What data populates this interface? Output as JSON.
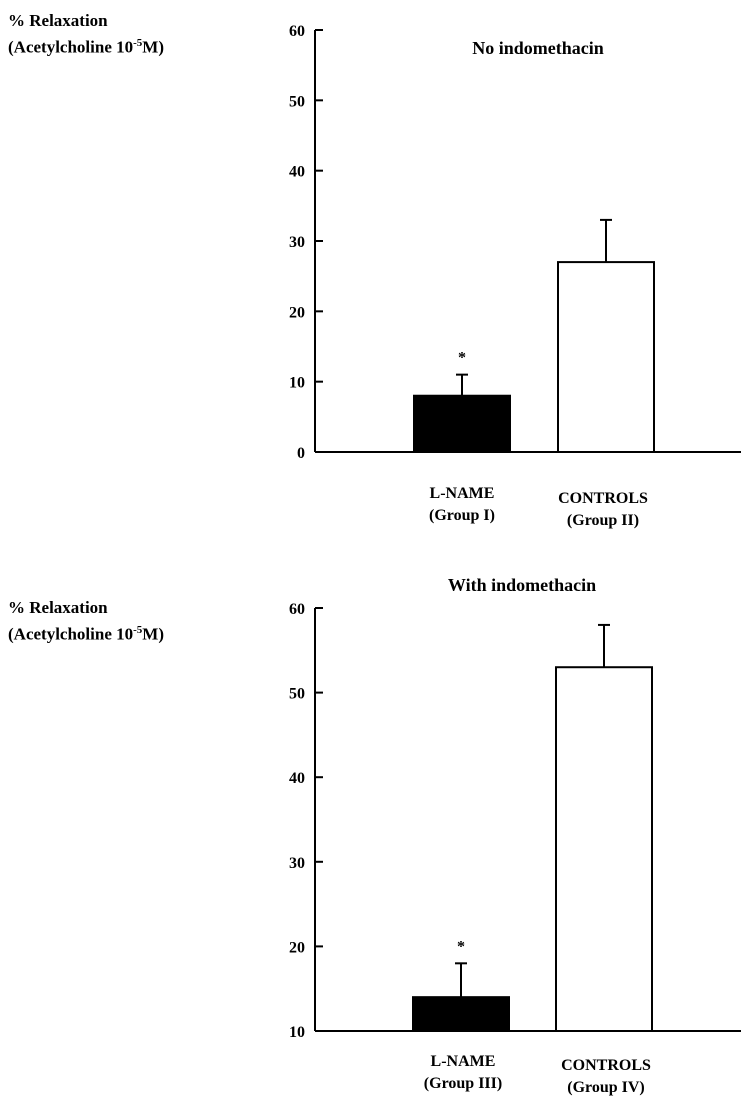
{
  "chart_data": [
    {
      "type": "bar",
      "title": "No indomethacin",
      "ylabel": [
        "% Relaxation",
        "(Acetylcholine 10",
        "-5",
        "M)"
      ],
      "categories": [
        {
          "name": "L-NAME",
          "group": "(Group I)"
        },
        {
          "name": "CONTROLS",
          "group": "(Group II)"
        }
      ],
      "values": [
        8,
        27
      ],
      "errors": [
        3,
        6
      ],
      "fills": [
        "#000000",
        "#ffffff"
      ],
      "significance": [
        "*",
        ""
      ],
      "ylim": [
        0,
        60
      ],
      "yticks": [
        0,
        10,
        20,
        30,
        40,
        50,
        60
      ],
      "grid": false,
      "legend": "none"
    },
    {
      "type": "bar",
      "title": "With indomethacin",
      "ylabel": [
        "% Relaxation",
        "(Acetylcholine 10",
        "-5",
        "M)"
      ],
      "categories": [
        {
          "name": "L-NAME",
          "group": "(Group III)"
        },
        {
          "name": "CONTROLS",
          "group": "(Group IV)"
        }
      ],
      "values": [
        14,
        53
      ],
      "errors": [
        4,
        5
      ],
      "fills": [
        "#000000",
        "#ffffff"
      ],
      "significance": [
        "*",
        ""
      ],
      "ylim": [
        10,
        60
      ],
      "yticks": [
        10,
        20,
        30,
        40,
        50,
        60
      ],
      "grid": false,
      "legend": "none"
    }
  ]
}
